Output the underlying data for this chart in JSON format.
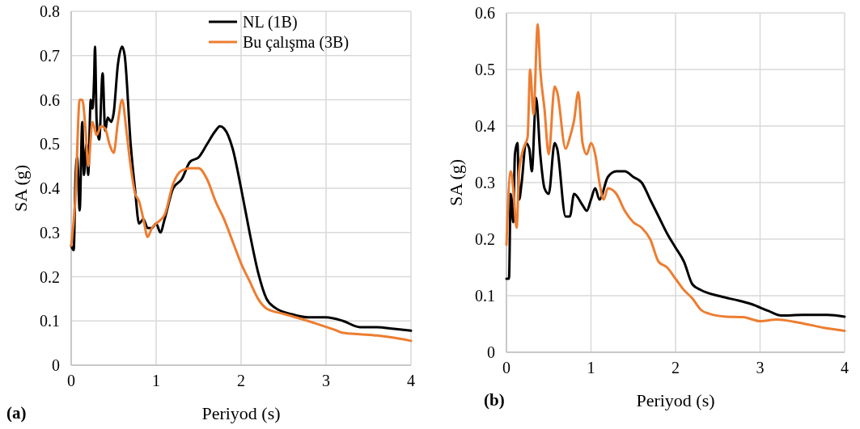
{
  "chart_data": [
    {
      "type": "line",
      "xlabel": "Periyod (s)",
      "ylabel": "SA (g)",
      "annotations": [
        "(a)"
      ],
      "xlim": [
        0,
        4
      ],
      "xticks": [
        0,
        1,
        2,
        3,
        4
      ],
      "ylim": [
        0,
        0.8
      ],
      "yticks": [
        0,
        0.1,
        0.2,
        0.3,
        0.4,
        0.5,
        0.6,
        0.7,
        0.8
      ],
      "grid": true,
      "legend": "top right",
      "marker": "none",
      "line_style": "solid",
      "series": [
        {
          "name": "NL (1B)",
          "color": "#000000",
          "x": [
            0,
            0.03,
            0.05,
            0.07,
            0.1,
            0.13,
            0.15,
            0.18,
            0.2,
            0.23,
            0.25,
            0.27,
            0.28,
            0.3,
            0.33,
            0.37,
            0.4,
            0.43,
            0.47,
            0.5,
            0.55,
            0.6,
            0.63,
            0.7,
            0.75,
            0.8,
            0.85,
            0.9,
            0.95,
            1.0,
            1.05,
            1.1,
            1.2,
            1.3,
            1.4,
            1.5,
            1.6,
            1.7,
            1.75,
            1.8,
            1.9,
            2.0,
            2.1,
            2.2,
            2.3,
            2.4,
            2.6,
            2.8,
            3.0,
            3.2,
            3.4,
            3.6,
            3.8,
            4.0
          ],
          "values": [
            0.27,
            0.26,
            0.42,
            0.47,
            0.35,
            0.55,
            0.43,
            0.5,
            0.43,
            0.6,
            0.58,
            0.65,
            0.72,
            0.55,
            0.51,
            0.66,
            0.53,
            0.56,
            0.55,
            0.57,
            0.68,
            0.72,
            0.7,
            0.5,
            0.4,
            0.32,
            0.33,
            0.31,
            0.31,
            0.32,
            0.3,
            0.33,
            0.4,
            0.42,
            0.46,
            0.47,
            0.5,
            0.53,
            0.54,
            0.535,
            0.49,
            0.4,
            0.3,
            0.21,
            0.15,
            0.13,
            0.115,
            0.108,
            0.108,
            0.1,
            0.086,
            0.086,
            0.082,
            0.078
          ]
        },
        {
          "name": "Bu çalışma (3B)",
          "color": "#ed7d31",
          "x": [
            0,
            0.05,
            0.1,
            0.13,
            0.17,
            0.2,
            0.25,
            0.3,
            0.35,
            0.4,
            0.45,
            0.5,
            0.55,
            0.6,
            0.65,
            0.7,
            0.75,
            0.8,
            0.85,
            0.9,
            0.95,
            1.0,
            1.1,
            1.2,
            1.3,
            1.4,
            1.5,
            1.6,
            1.7,
            1.8,
            1.9,
            2.0,
            2.1,
            2.2,
            2.3,
            2.5,
            2.7,
            2.9,
            3.1,
            3.2,
            3.4,
            3.6,
            3.8,
            4.0
          ],
          "values": [
            0.27,
            0.38,
            0.6,
            0.6,
            0.53,
            0.45,
            0.55,
            0.52,
            0.54,
            0.535,
            0.5,
            0.48,
            0.55,
            0.6,
            0.53,
            0.45,
            0.39,
            0.37,
            0.33,
            0.29,
            0.31,
            0.32,
            0.34,
            0.41,
            0.44,
            0.445,
            0.445,
            0.42,
            0.37,
            0.33,
            0.28,
            0.23,
            0.19,
            0.15,
            0.128,
            0.116,
            0.105,
            0.093,
            0.08,
            0.073,
            0.07,
            0.067,
            0.062,
            0.055
          ]
        }
      ]
    },
    {
      "type": "line",
      "xlabel": "Periyod (s)",
      "ylabel": "SA (g)",
      "annotations": [
        "(b)"
      ],
      "xlim": [
        0,
        4
      ],
      "xticks": [
        0,
        1,
        2,
        3,
        4
      ],
      "ylim": [
        0,
        0.6
      ],
      "yticks": [
        0,
        0.1,
        0.2,
        0.3,
        0.4,
        0.5,
        0.6
      ],
      "grid": true,
      "marker": "none",
      "line_style": "solid",
      "series": [
        {
          "color": "#000000",
          "x": [
            0,
            0.03,
            0.05,
            0.08,
            0.1,
            0.13,
            0.15,
            0.18,
            0.23,
            0.27,
            0.3,
            0.35,
            0.4,
            0.45,
            0.5,
            0.57,
            0.6,
            0.7,
            0.75,
            0.8,
            0.9,
            0.95,
            1.0,
            1.05,
            1.1,
            1.2,
            1.3,
            1.4,
            1.5,
            1.6,
            1.7,
            1.8,
            1.9,
            2.0,
            2.1,
            2.2,
            2.3,
            2.5,
            2.7,
            2.9,
            3.1,
            3.25,
            3.5,
            3.8,
            4.0
          ],
          "values": [
            0.13,
            0.13,
            0.28,
            0.23,
            0.35,
            0.37,
            0.27,
            0.3,
            0.37,
            0.36,
            0.32,
            0.45,
            0.35,
            0.29,
            0.28,
            0.37,
            0.36,
            0.24,
            0.24,
            0.28,
            0.26,
            0.25,
            0.27,
            0.29,
            0.27,
            0.31,
            0.32,
            0.32,
            0.31,
            0.3,
            0.27,
            0.24,
            0.21,
            0.185,
            0.16,
            0.12,
            0.11,
            0.1,
            0.093,
            0.085,
            0.073,
            0.065,
            0.066,
            0.066,
            0.063
          ]
        },
        {
          "color": "#ed7d31",
          "x": [
            0,
            0.05,
            0.08,
            0.12,
            0.15,
            0.2,
            0.25,
            0.28,
            0.32,
            0.37,
            0.4,
            0.45,
            0.5,
            0.57,
            0.6,
            0.7,
            0.75,
            0.8,
            0.85,
            0.9,
            0.95,
            1.0,
            1.05,
            1.1,
            1.15,
            1.2,
            1.3,
            1.4,
            1.5,
            1.6,
            1.7,
            1.8,
            1.9,
            2.0,
            2.1,
            2.2,
            2.3,
            2.4,
            2.6,
            2.8,
            3.0,
            3.2,
            3.4,
            3.6,
            3.8,
            4.0
          ],
          "values": [
            0.19,
            0.32,
            0.29,
            0.22,
            0.32,
            0.36,
            0.38,
            0.5,
            0.42,
            0.58,
            0.5,
            0.43,
            0.35,
            0.47,
            0.46,
            0.36,
            0.38,
            0.41,
            0.46,
            0.37,
            0.35,
            0.37,
            0.35,
            0.3,
            0.27,
            0.29,
            0.28,
            0.25,
            0.23,
            0.22,
            0.2,
            0.16,
            0.15,
            0.13,
            0.11,
            0.095,
            0.075,
            0.068,
            0.063,
            0.062,
            0.055,
            0.058,
            0.054,
            0.048,
            0.042,
            0.038
          ]
        }
      ]
    }
  ]
}
